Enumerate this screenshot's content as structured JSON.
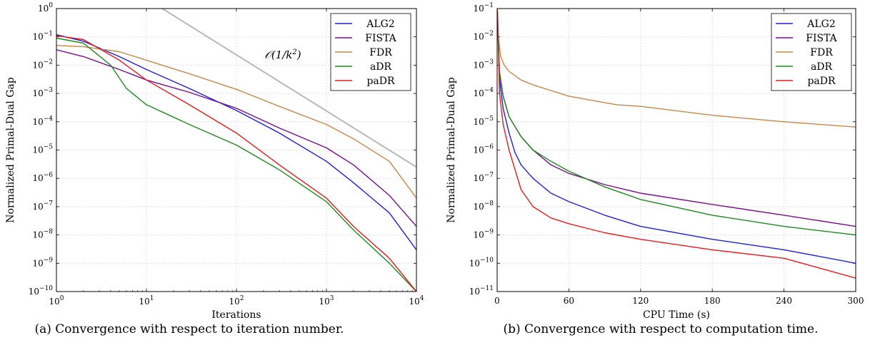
{
  "figure": {
    "caption_a": "(a) Convergence with respect to iteration number.",
    "caption_b": "(b) Convergence with respect to computation time."
  },
  "colors": {
    "ALG2": "#1f1fdc",
    "FISTA": "#7a0d8c",
    "FDR": "#c8874a",
    "aDR": "#1f8a1f",
    "paDR": "#e41b1b",
    "ref": "#b9b9b9"
  },
  "chart_data": [
    {
      "type": "line",
      "xlabel": "Iterations",
      "ylabel": "Normalized Primal-Dual Gap",
      "xscale": "log",
      "yscale": "log",
      "xlim": [
        1,
        10000
      ],
      "ylim": [
        1e-10,
        1
      ],
      "x_ticks": [
        "10^0",
        "10^1",
        "10^2",
        "10^3",
        "10^4"
      ],
      "y_ticks": [
        "10^0",
        "10^-1",
        "10^-2",
        "10^-3",
        "10^-4",
        "10^-5",
        "10^-6",
        "10^-7",
        "10^-8",
        "10^-9",
        "10^-10"
      ],
      "grid": true,
      "legend": "top-right",
      "annotation": "O(1/k^2)",
      "reference_line": {
        "x": [
          15,
          10000
        ],
        "y": [
          1,
          2.5e-06
        ]
      },
      "series": [
        {
          "name": "ALG2",
          "x": [
            1,
            2,
            5,
            10,
            30,
            100,
            300,
            1000,
            2000,
            5000,
            10000
          ],
          "y": [
            0.12,
            0.07,
            0.02,
            0.007,
            0.0015,
            0.00025,
            4e-05,
            4e-06,
            7e-07,
            6e-08,
            3e-09
          ]
        },
        {
          "name": "FISTA",
          "x": [
            1,
            2,
            5,
            10,
            30,
            100,
            300,
            1000,
            2000,
            5000,
            10000
          ],
          "y": [
            0.035,
            0.02,
            0.007,
            0.003,
            0.0011,
            0.0003,
            6e-05,
            1.2e-05,
            3e-06,
            2.5e-07,
            2e-08
          ]
        },
        {
          "name": "FDR",
          "x": [
            1,
            2,
            5,
            10,
            30,
            100,
            300,
            1000,
            2000,
            5000,
            10000
          ],
          "y": [
            0.05,
            0.045,
            0.03,
            0.015,
            0.005,
            0.0014,
            0.00035,
            8e-05,
            2.5e-05,
            4e-06,
            2e-07
          ]
        },
        {
          "name": "aDR",
          "x": [
            1,
            2,
            4,
            6,
            10,
            30,
            100,
            300,
            1000,
            2000,
            5000,
            10000
          ],
          "y": [
            0.09,
            0.06,
            0.01,
            0.0015,
            0.0004,
            8e-05,
            1.5e-05,
            2e-06,
            1.5e-07,
            1.5e-08,
            1e-09,
            1e-10
          ]
        },
        {
          "name": "paDR",
          "x": [
            1,
            2,
            5,
            10,
            30,
            100,
            300,
            1000,
            2000,
            5000,
            10000
          ],
          "y": [
            0.11,
            0.08,
            0.015,
            0.003,
            0.0004,
            4e-05,
            3e-06,
            2e-07,
            2e-08,
            1.5e-09,
            1e-10
          ]
        }
      ]
    },
    {
      "type": "line",
      "xlabel": "CPU Time (s)",
      "ylabel": "Normalized Primal-Dual Gap",
      "xscale": "linear",
      "yscale": "log",
      "xlim": [
        0,
        300
      ],
      "ylim": [
        1e-11,
        0.1
      ],
      "x_ticks": [
        "0",
        "60",
        "120",
        "180",
        "240",
        "300"
      ],
      "y_ticks": [
        "10^-1",
        "10^-2",
        "10^-3",
        "10^-4",
        "10^-5",
        "10^-6",
        "10^-7",
        "10^-8",
        "10^-9",
        "10^-10",
        "10^-11"
      ],
      "grid": true,
      "legend": "top-right",
      "series": [
        {
          "name": "ALG2",
          "x": [
            0.3,
            2,
            5,
            10,
            15,
            20,
            30,
            45,
            60,
            90,
            120,
            180,
            240,
            300
          ],
          "y": [
            0.05,
            0.0003,
            3e-05,
            4e-06,
            8e-07,
            3e-07,
            1e-07,
            3e-08,
            1.5e-08,
            5e-09,
            2e-09,
            7e-10,
            3e-10,
            1e-10
          ]
        },
        {
          "name": "FISTA",
          "x": [
            0.3,
            2,
            5,
            10,
            20,
            30,
            45,
            60,
            90,
            120,
            180,
            240,
            300
          ],
          "y": [
            0.05,
            0.0005,
            8e-05,
            1.5e-05,
            3e-06,
            1e-06,
            3e-07,
            1.5e-07,
            6e-08,
            3e-08,
            1.2e-08,
            5e-09,
            2e-09
          ]
        },
        {
          "name": "FDR",
          "x": [
            0.3,
            1,
            3,
            6,
            10,
            20,
            30,
            60,
            100,
            120,
            180,
            240,
            300
          ],
          "y": [
            0.1,
            0.01,
            0.002,
            0.001,
            0.0006,
            0.0003,
            0.0002,
            8e-05,
            4e-05,
            3.5e-05,
            1.7e-05,
            1e-05,
            6.5e-06
          ]
        },
        {
          "name": "aDR",
          "x": [
            0.3,
            2,
            5,
            10,
            20,
            30,
            45,
            60,
            90,
            120,
            180,
            240,
            300
          ],
          "y": [
            0.05,
            0.0006,
            8e-05,
            1.5e-05,
            3e-06,
            1e-06,
            4e-07,
            1.8e-07,
            5e-08,
            1.8e-08,
            5e-09,
            2e-09,
            1e-09
          ]
        },
        {
          "name": "paDR",
          "x": [
            0.3,
            2,
            5,
            10,
            15,
            20,
            30,
            45,
            60,
            90,
            120,
            180,
            240,
            300
          ],
          "y": [
            0.08,
            0.0001,
            8e-06,
            1e-06,
            2e-07,
            4e-08,
            1e-08,
            4e-09,
            2.5e-09,
            1.2e-09,
            7e-10,
            3e-10,
            1.5e-10,
            3e-11
          ]
        }
      ]
    }
  ]
}
